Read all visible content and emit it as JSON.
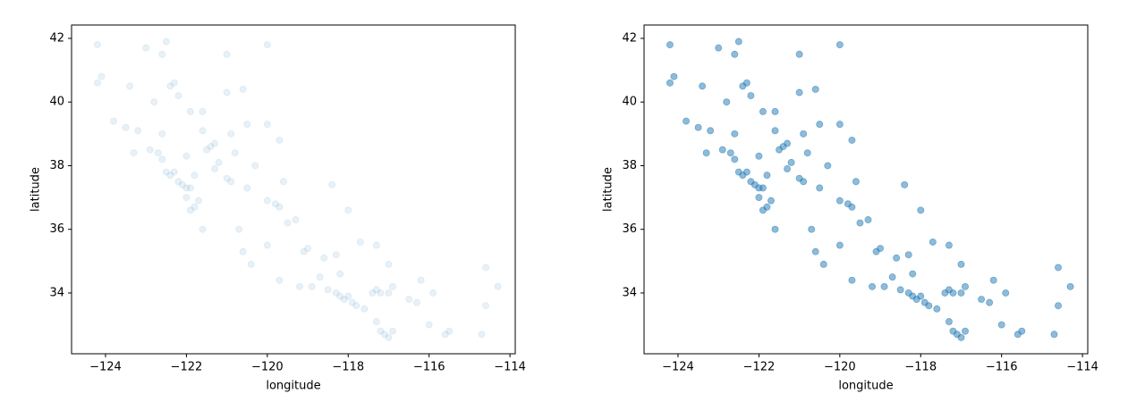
{
  "chart_data": [
    {
      "type": "scatter",
      "xlabel": "longitude",
      "ylabel": "latitude",
      "color": "#1f77b4",
      "alpha": 0.1,
      "xlim": [
        -124.84,
        -113.87
      ],
      "ylim": [
        32.09,
        42.42
      ],
      "xticks": [
        {
          "value": -124,
          "label": "−124"
        },
        {
          "value": -122,
          "label": "−122"
        },
        {
          "value": -120,
          "label": "−120"
        },
        {
          "value": -118,
          "label": "−118"
        },
        {
          "value": -116,
          "label": "−116"
        },
        {
          "value": -114,
          "label": "−114"
        }
      ],
      "yticks": [
        34,
        36,
        38,
        40,
        42
      ],
      "x": [
        -124.2,
        -124.1,
        -124.2,
        -123.8,
        -123.5,
        -123.2,
        -122.9,
        -122.7,
        -122.6,
        -122.5,
        -122.4,
        -122.3,
        -122.2,
        -122.1,
        -122.0,
        -121.9,
        -121.9,
        -121.8,
        -121.7,
        -122.0,
        -122.6,
        -122.3,
        -122.4,
        -122.2,
        -121.9,
        -121.6,
        -121.6,
        -121.4,
        -121.3,
        -121.5,
        -121.2,
        -121.0,
        -120.9,
        -120.5,
        -120.0,
        -119.8,
        -119.7,
        -119.3,
        -119.0,
        -119.1,
        -120.6,
        -120.4,
        -119.7,
        -119.2,
        -118.9,
        -118.5,
        -118.3,
        -118.2,
        -118.1,
        -118.0,
        -117.9,
        -117.8,
        -117.6,
        -117.3,
        -117.2,
        -117.1,
        -117.0,
        -116.9,
        -117.4,
        -117.3,
        -117.2,
        -117.0,
        -116.5,
        -116.3,
        -115.5,
        -115.6,
        -114.6,
        -114.6,
        -114.3,
        -114.7,
        -116.2,
        -117.0,
        -117.7,
        -118.2,
        -118.6,
        -120.0,
        -120.7,
        -121.6,
        -119.6,
        -120.3,
        -120.8,
        -120.5,
        -120.0,
        -120.0,
        -121.0,
        -122.5,
        -123.0,
        -123.4,
        -121.0,
        -120.6,
        -119.7,
        -118.4,
        -118.0,
        -117.3,
        -116.9,
        -118.7,
        -121.3,
        -122.0,
        -122.6,
        -123.3,
        -121.8,
        -122.8,
        -120.9,
        -119.5,
        -118.3,
        -116.0,
        -115.9
      ],
      "y": [
        41.8,
        40.8,
        40.6,
        39.4,
        39.2,
        39.1,
        38.5,
        38.4,
        38.2,
        37.8,
        37.7,
        37.8,
        37.5,
        37.4,
        37.3,
        37.3,
        36.6,
        36.7,
        36.9,
        37.0,
        41.5,
        40.6,
        40.5,
        40.2,
        39.7,
        39.7,
        39.1,
        38.6,
        38.7,
        38.5,
        38.1,
        37.6,
        37.5,
        37.3,
        36.9,
        36.8,
        36.7,
        36.3,
        35.4,
        35.3,
        35.3,
        34.9,
        34.4,
        34.2,
        34.2,
        34.1,
        34.0,
        33.9,
        33.8,
        33.9,
        33.7,
        33.6,
        33.5,
        33.1,
        32.8,
        32.7,
        32.6,
        32.8,
        34.0,
        34.1,
        34.0,
        34.0,
        33.8,
        33.7,
        32.8,
        32.7,
        34.8,
        33.6,
        34.2,
        32.7,
        34.4,
        34.9,
        35.6,
        34.6,
        35.1,
        35.5,
        36.0,
        36.0,
        37.5,
        38.0,
        38.4,
        39.3,
        39.3,
        41.8,
        41.5,
        41.9,
        41.7,
        40.5,
        40.3,
        40.4,
        38.8,
        37.4,
        36.6,
        35.5,
        34.2,
        34.5,
        37.9,
        38.3,
        39.0,
        38.4,
        37.7,
        40.0,
        39.0,
        36.2,
        35.2,
        33.0,
        34.0
      ]
    },
    {
      "type": "scatter",
      "xlabel": "longitude",
      "ylabel": "latitude",
      "color": "#1f77b4",
      "alpha": 0.5,
      "xlim": [
        -124.84,
        -113.87
      ],
      "ylim": [
        32.09,
        42.42
      ],
      "xticks": [
        {
          "value": -124,
          "label": "−124"
        },
        {
          "value": -122,
          "label": "−122"
        },
        {
          "value": -120,
          "label": "−120"
        },
        {
          "value": -118,
          "label": "−118"
        },
        {
          "value": -116,
          "label": "−116"
        },
        {
          "value": -114,
          "label": "−114"
        }
      ],
      "yticks": [
        34,
        36,
        38,
        40,
        42
      ],
      "x": [
        -124.2,
        -124.1,
        -124.2,
        -123.8,
        -123.5,
        -123.2,
        -122.9,
        -122.7,
        -122.6,
        -122.5,
        -122.4,
        -122.3,
        -122.2,
        -122.1,
        -122.0,
        -121.9,
        -121.9,
        -121.8,
        -121.7,
        -122.0,
        -122.6,
        -122.3,
        -122.4,
        -122.2,
        -121.9,
        -121.6,
        -121.6,
        -121.4,
        -121.3,
        -121.5,
        -121.2,
        -121.0,
        -120.9,
        -120.5,
        -120.0,
        -119.8,
        -119.7,
        -119.3,
        -119.0,
        -119.1,
        -120.6,
        -120.4,
        -119.7,
        -119.2,
        -118.9,
        -118.5,
        -118.3,
        -118.2,
        -118.1,
        -118.0,
        -117.9,
        -117.8,
        -117.6,
        -117.3,
        -117.2,
        -117.1,
        -117.0,
        -116.9,
        -117.4,
        -117.3,
        -117.2,
        -117.0,
        -116.5,
        -116.3,
        -115.5,
        -115.6,
        -114.6,
        -114.6,
        -114.3,
        -114.7,
        -116.2,
        -117.0,
        -117.7,
        -118.2,
        -118.6,
        -120.0,
        -120.7,
        -121.6,
        -119.6,
        -120.3,
        -120.8,
        -120.5,
        -120.0,
        -120.0,
        -121.0,
        -122.5,
        -123.0,
        -123.4,
        -121.0,
        -120.6,
        -119.7,
        -118.4,
        -118.0,
        -117.3,
        -116.9,
        -118.7,
        -121.3,
        -122.0,
        -122.6,
        -123.3,
        -121.8,
        -122.8,
        -120.9,
        -119.5,
        -118.3,
        -116.0,
        -115.9
      ],
      "y": [
        41.8,
        40.8,
        40.6,
        39.4,
        39.2,
        39.1,
        38.5,
        38.4,
        38.2,
        37.8,
        37.7,
        37.8,
        37.5,
        37.4,
        37.3,
        37.3,
        36.6,
        36.7,
        36.9,
        37.0,
        41.5,
        40.6,
        40.5,
        40.2,
        39.7,
        39.7,
        39.1,
        38.6,
        38.7,
        38.5,
        38.1,
        37.6,
        37.5,
        37.3,
        36.9,
        36.8,
        36.7,
        36.3,
        35.4,
        35.3,
        35.3,
        34.9,
        34.4,
        34.2,
        34.2,
        34.1,
        34.0,
        33.9,
        33.8,
        33.9,
        33.7,
        33.6,
        33.5,
        33.1,
        32.8,
        32.7,
        32.6,
        32.8,
        34.0,
        34.1,
        34.0,
        34.0,
        33.8,
        33.7,
        32.8,
        32.7,
        34.8,
        33.6,
        34.2,
        32.7,
        34.4,
        34.9,
        35.6,
        34.6,
        35.1,
        35.5,
        36.0,
        36.0,
        37.5,
        38.0,
        38.4,
        39.3,
        39.3,
        41.8,
        41.5,
        41.9,
        41.7,
        40.5,
        40.3,
        40.4,
        38.8,
        37.4,
        36.6,
        35.5,
        34.2,
        34.5,
        37.9,
        38.3,
        39.0,
        38.4,
        37.7,
        40.0,
        39.0,
        36.2,
        35.2,
        33.0,
        34.0
      ]
    }
  ]
}
